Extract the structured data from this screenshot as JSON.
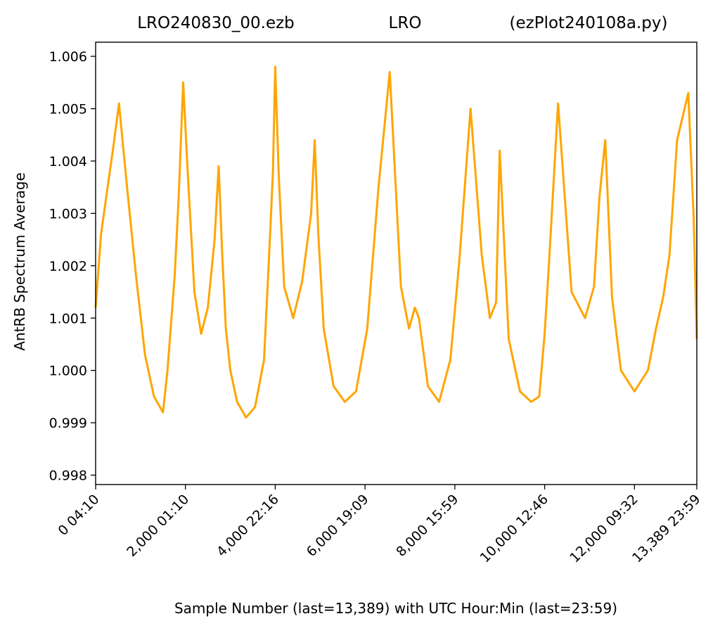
{
  "chart_data": {
    "type": "line",
    "title_left": "LRO240830_00.ezb",
    "title_center": "LRO",
    "title_right": "(ezPlot240108a.py)",
    "xlabel": "Sample Number (last=13,389) with UTC Hour:Min (last=23:59)",
    "ylabel": "AntRB Spectrum Average",
    "xlim": [
      0,
      13389
    ],
    "ylim": [
      0.99782,
      1.00627
    ],
    "grid": false,
    "line_color": "#ffa500",
    "x_ticks": [
      {
        "value": 0,
        "label": "0  04:10"
      },
      {
        "value": 2000,
        "label": "2,000  01:10"
      },
      {
        "value": 4000,
        "label": "4,000  22:16"
      },
      {
        "value": 6000,
        "label": "6,000  19:09"
      },
      {
        "value": 8000,
        "label": "8,000  15:59"
      },
      {
        "value": 10000,
        "label": "10,000  12:46"
      },
      {
        "value": 12000,
        "label": "12,000  09:32"
      },
      {
        "value": 13389,
        "label": "13,389  23:59"
      }
    ],
    "y_ticks": [
      {
        "value": 0.998,
        "label": "0.998"
      },
      {
        "value": 0.999,
        "label": "0.999"
      },
      {
        "value": 1.0,
        "label": "1.000"
      },
      {
        "value": 1.001,
        "label": "1.001"
      },
      {
        "value": 1.002,
        "label": "1.002"
      },
      {
        "value": 1.003,
        "label": "1.003"
      },
      {
        "value": 1.004,
        "label": "1.004"
      },
      {
        "value": 1.005,
        "label": "1.005"
      },
      {
        "value": 1.006,
        "label": "1.006"
      }
    ],
    "series": [
      {
        "x": [
          0,
          120,
          250,
          400,
          520,
          700,
          900,
          1100,
          1300,
          1500,
          1600,
          1680,
          1760,
          1850,
          1950,
          2050,
          2200,
          2350,
          2500,
          2650,
          2740,
          2820,
          2900,
          3000,
          3150,
          3350,
          3550,
          3750,
          3880,
          3950,
          4000,
          4080,
          4200,
          4400,
          4600,
          4800,
          4880,
          4960,
          5080,
          5300,
          5550,
          5800,
          6050,
          6300,
          6550,
          6800,
          6980,
          7110,
          7200,
          7400,
          7650,
          7900,
          8100,
          8350,
          8600,
          8780,
          8920,
          9000,
          9200,
          9450,
          9700,
          9880,
          10000,
          10100,
          10300,
          10600,
          10900,
          11100,
          11220,
          11350,
          11500,
          11700,
          12000,
          12300,
          12480,
          12640,
          12780,
          12950,
          13200,
          13320,
          13389
        ],
        "y": [
          1.0012,
          1.0026,
          1.0034,
          1.0043,
          1.0051,
          1.0035,
          1.0018,
          1.0003,
          0.9995,
          0.9992,
          1.0,
          1.0009,
          1.0018,
          1.0033,
          1.0055,
          1.0038,
          1.0015,
          1.0007,
          1.0012,
          1.0025,
          1.0039,
          1.0022,
          1.0008,
          1.0,
          0.9994,
          0.9991,
          0.9993,
          1.0002,
          1.0025,
          1.0038,
          1.0058,
          1.0037,
          1.0016,
          1.001,
          1.0017,
          1.003,
          1.0044,
          1.0026,
          1.0008,
          0.9997,
          0.9994,
          0.9996,
          1.0008,
          1.0035,
          1.0057,
          1.0016,
          1.0008,
          1.0012,
          1.001,
          0.9997,
          0.9994,
          1.0002,
          1.0021,
          1.005,
          1.0022,
          1.001,
          1.0013,
          1.0042,
          1.0006,
          0.9996,
          0.9994,
          0.9995,
          1.0007,
          1.0021,
          1.0051,
          1.0015,
          1.001,
          1.0016,
          1.0033,
          1.0044,
          1.0014,
          1.0,
          0.9996,
          1.0,
          1.0008,
          1.0014,
          1.0022,
          1.0044,
          1.0053,
          1.0029,
          1.0006
        ]
      }
    ]
  }
}
